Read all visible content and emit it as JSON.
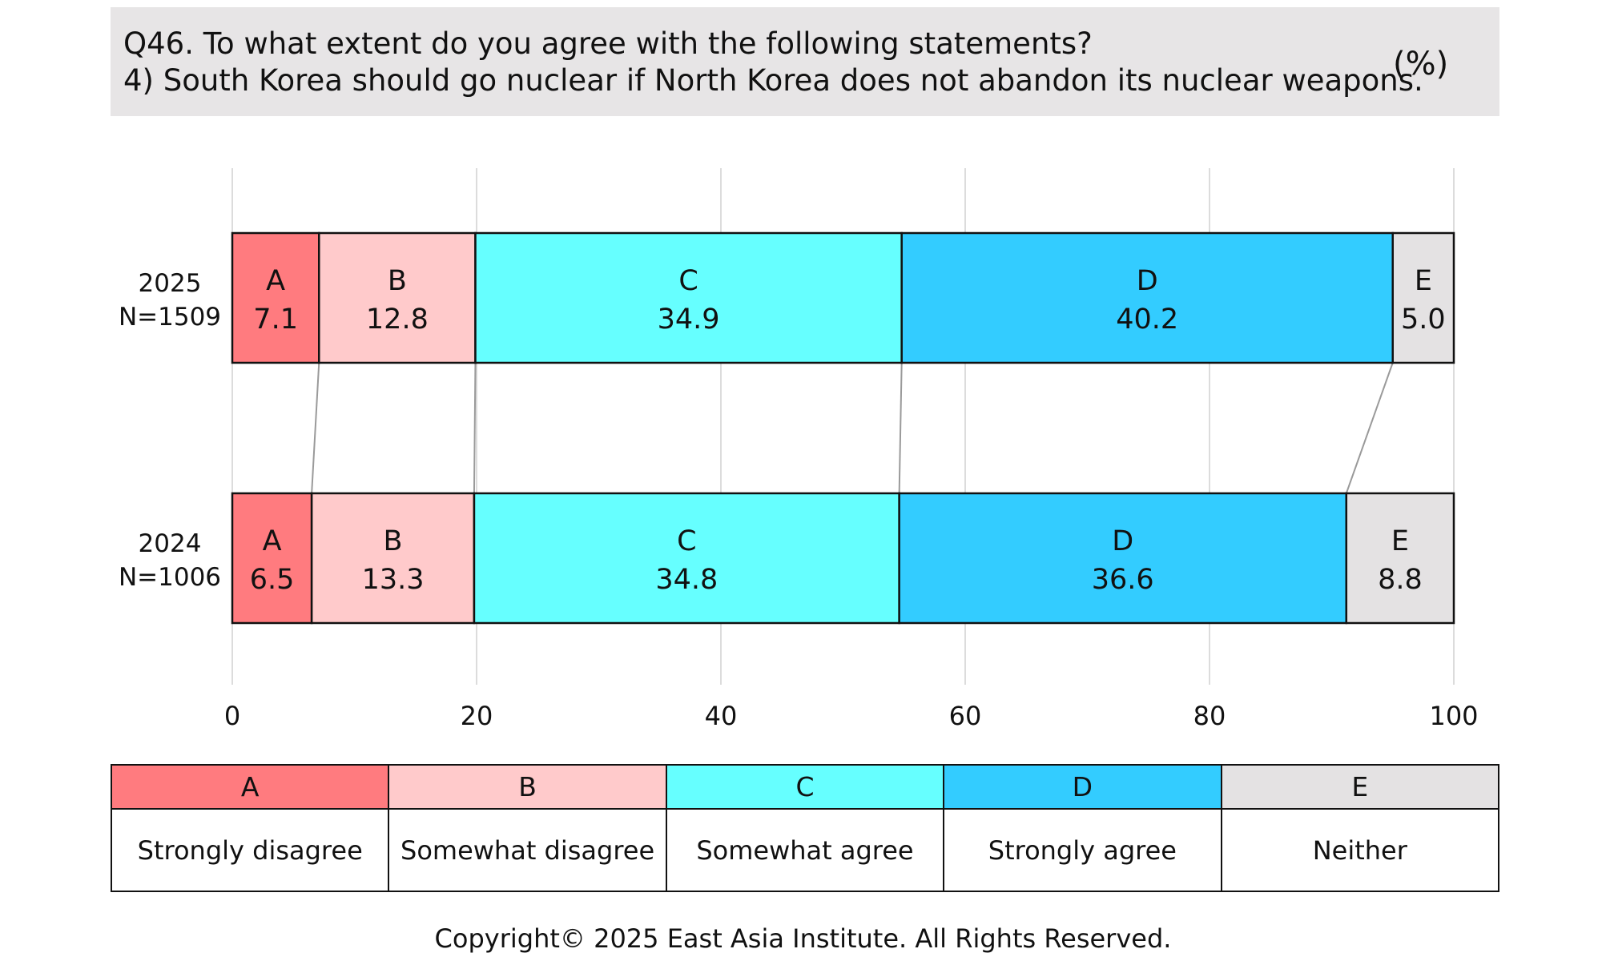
{
  "header": {
    "question": "Q46. To what extent do you agree with the following statements?",
    "statement": "4) South Korea should go nuclear if North Korea does not abandon its nuclear weapons.",
    "unit": "(%)"
  },
  "colors": {
    "A": "#ff7b7f",
    "B": "#ffcacb",
    "C": "#66ffff",
    "D": "#33ccff",
    "E": "#e4e2e3",
    "grid": "#d0d0d0",
    "connector": "#9a9a9a"
  },
  "chart_data": {
    "type": "bar",
    "orientation": "horizontal",
    "stacked": true,
    "unit": "%",
    "categories": [
      "2025",
      "2024"
    ],
    "sample_sizes": [
      "N=1509",
      "N=1006"
    ],
    "series": [
      {
        "name": "A",
        "values": [
          7.1,
          6.5
        ]
      },
      {
        "name": "B",
        "values": [
          12.8,
          13.3
        ]
      },
      {
        "name": "C",
        "values": [
          34.9,
          34.8
        ]
      },
      {
        "name": "D",
        "values": [
          40.2,
          36.6
        ]
      },
      {
        "name": "E",
        "values": [
          5.0,
          8.8
        ]
      }
    ],
    "value_labels": [
      [
        "7.1",
        "12.8",
        "34.9",
        "40.2",
        "5.0"
      ],
      [
        "6.5",
        "13.3",
        "34.8",
        "36.6",
        "8.8"
      ]
    ],
    "xlim": [
      0,
      100
    ],
    "xticks": [
      0,
      20,
      40,
      60,
      80,
      100
    ],
    "xtick_labels": [
      "0",
      "20",
      "40",
      "60",
      "80",
      "100"
    ],
    "grid": true,
    "connector_lines": true,
    "legend_position": "bottom"
  },
  "legend": [
    {
      "code": "A",
      "label": "Strongly disagree"
    },
    {
      "code": "B",
      "label": "Somewhat disagree"
    },
    {
      "code": "C",
      "label": "Somewhat agree"
    },
    {
      "code": "D",
      "label": "Strongly agree"
    },
    {
      "code": "E",
      "label": "Neither"
    }
  ],
  "footer": {
    "copyright": "Copyright© 2025 East Asia Institute. All Rights Reserved."
  }
}
